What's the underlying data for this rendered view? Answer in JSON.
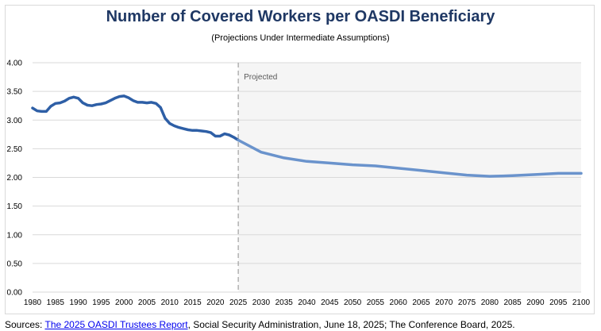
{
  "chart_data": {
    "type": "line",
    "title": "Number of Covered Workers per OASDI Beneficiary",
    "subtitle": "(Projections Under Intermediate Assumptions)",
    "xlabel": "",
    "ylabel": "",
    "xlim": [
      1980,
      2100
    ],
    "ylim": [
      0,
      4
    ],
    "grid": true,
    "y_ticks": [
      "0.00",
      "0.50",
      "1.00",
      "1.50",
      "2.00",
      "2.50",
      "3.00",
      "3.50",
      "4.00"
    ],
    "x_ticks": [
      "1980",
      "1985",
      "1990",
      "1995",
      "2000",
      "2005",
      "2010",
      "2015",
      "2020",
      "2025",
      "2030",
      "2035",
      "2040",
      "2045",
      "2050",
      "2055",
      "2060",
      "2065",
      "2070",
      "2075",
      "2080",
      "2085",
      "2090",
      "2095",
      "2100"
    ],
    "projection_start": 2025,
    "projection_label": "Projected",
    "colors": {
      "historical": "#2e5fa6",
      "projected": "#6a93cc",
      "shading": "#f5f5f5",
      "title": "#1f3864"
    },
    "series": [
      {
        "segment": "historical",
        "x": [
          1980,
          1981,
          1982,
          1983,
          1984,
          1985,
          1986,
          1987,
          1988,
          1989,
          1990,
          1991,
          1992,
          1993,
          1994,
          1995,
          1996,
          1997,
          1998,
          1999,
          2000,
          2001,
          2002,
          2003,
          2004,
          2005,
          2006,
          2007,
          2008,
          2009,
          2010,
          2011,
          2012,
          2013,
          2014,
          2015,
          2016,
          2017,
          2018,
          2019,
          2020,
          2021,
          2022,
          2023,
          2024,
          2025
        ],
        "y": [
          3.21,
          3.16,
          3.15,
          3.15,
          3.24,
          3.29,
          3.3,
          3.33,
          3.38,
          3.4,
          3.38,
          3.3,
          3.26,
          3.25,
          3.27,
          3.28,
          3.3,
          3.34,
          3.38,
          3.41,
          3.42,
          3.39,
          3.34,
          3.31,
          3.31,
          3.3,
          3.31,
          3.29,
          3.22,
          3.03,
          2.94,
          2.9,
          2.87,
          2.85,
          2.83,
          2.82,
          2.82,
          2.81,
          2.8,
          2.78,
          2.72,
          2.72,
          2.76,
          2.74,
          2.7,
          2.65
        ]
      },
      {
        "segment": "projected",
        "x": [
          2025,
          2030,
          2035,
          2040,
          2045,
          2050,
          2055,
          2060,
          2065,
          2070,
          2075,
          2080,
          2085,
          2090,
          2095,
          2100
        ],
        "y": [
          2.65,
          2.44,
          2.34,
          2.28,
          2.25,
          2.22,
          2.2,
          2.16,
          2.12,
          2.08,
          2.04,
          2.02,
          2.03,
          2.05,
          2.07,
          2.07
        ]
      }
    ]
  },
  "sources": {
    "prefix": "Sources: ",
    "link_text": "The 2025 OASDI Trustees Report",
    "suffix": ", Social Security Administration, June 18, 2025; The Conference Board, 2025."
  }
}
